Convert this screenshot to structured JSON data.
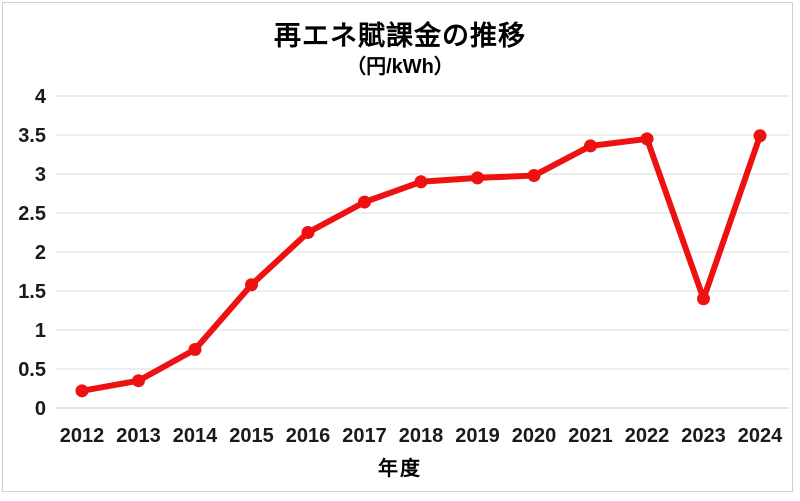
{
  "chart_data": {
    "type": "line",
    "title": "再エネ賦課金の推移",
    "subtitle": "（円/kWh）",
    "xlabel": "年度",
    "ylabel": "",
    "categories": [
      "2012",
      "2013",
      "2014",
      "2015",
      "2016",
      "2017",
      "2018",
      "2019",
      "2020",
      "2021",
      "2022",
      "2023",
      "2024"
    ],
    "values": [
      0.22,
      0.35,
      0.75,
      1.58,
      2.25,
      2.64,
      2.9,
      2.95,
      2.98,
      3.36,
      3.45,
      1.4,
      3.49
    ],
    "ylim": [
      0,
      4
    ],
    "ytick_step": 0.5,
    "grid": true,
    "legend": false,
    "line_color": "#ee1111",
    "marker": "circle",
    "gridline_color": "#d9d9d9",
    "axis_line_color": "#c6c6c6",
    "tick_label_color": "#1a1a1a",
    "frame_color": "#cfcfcf"
  }
}
